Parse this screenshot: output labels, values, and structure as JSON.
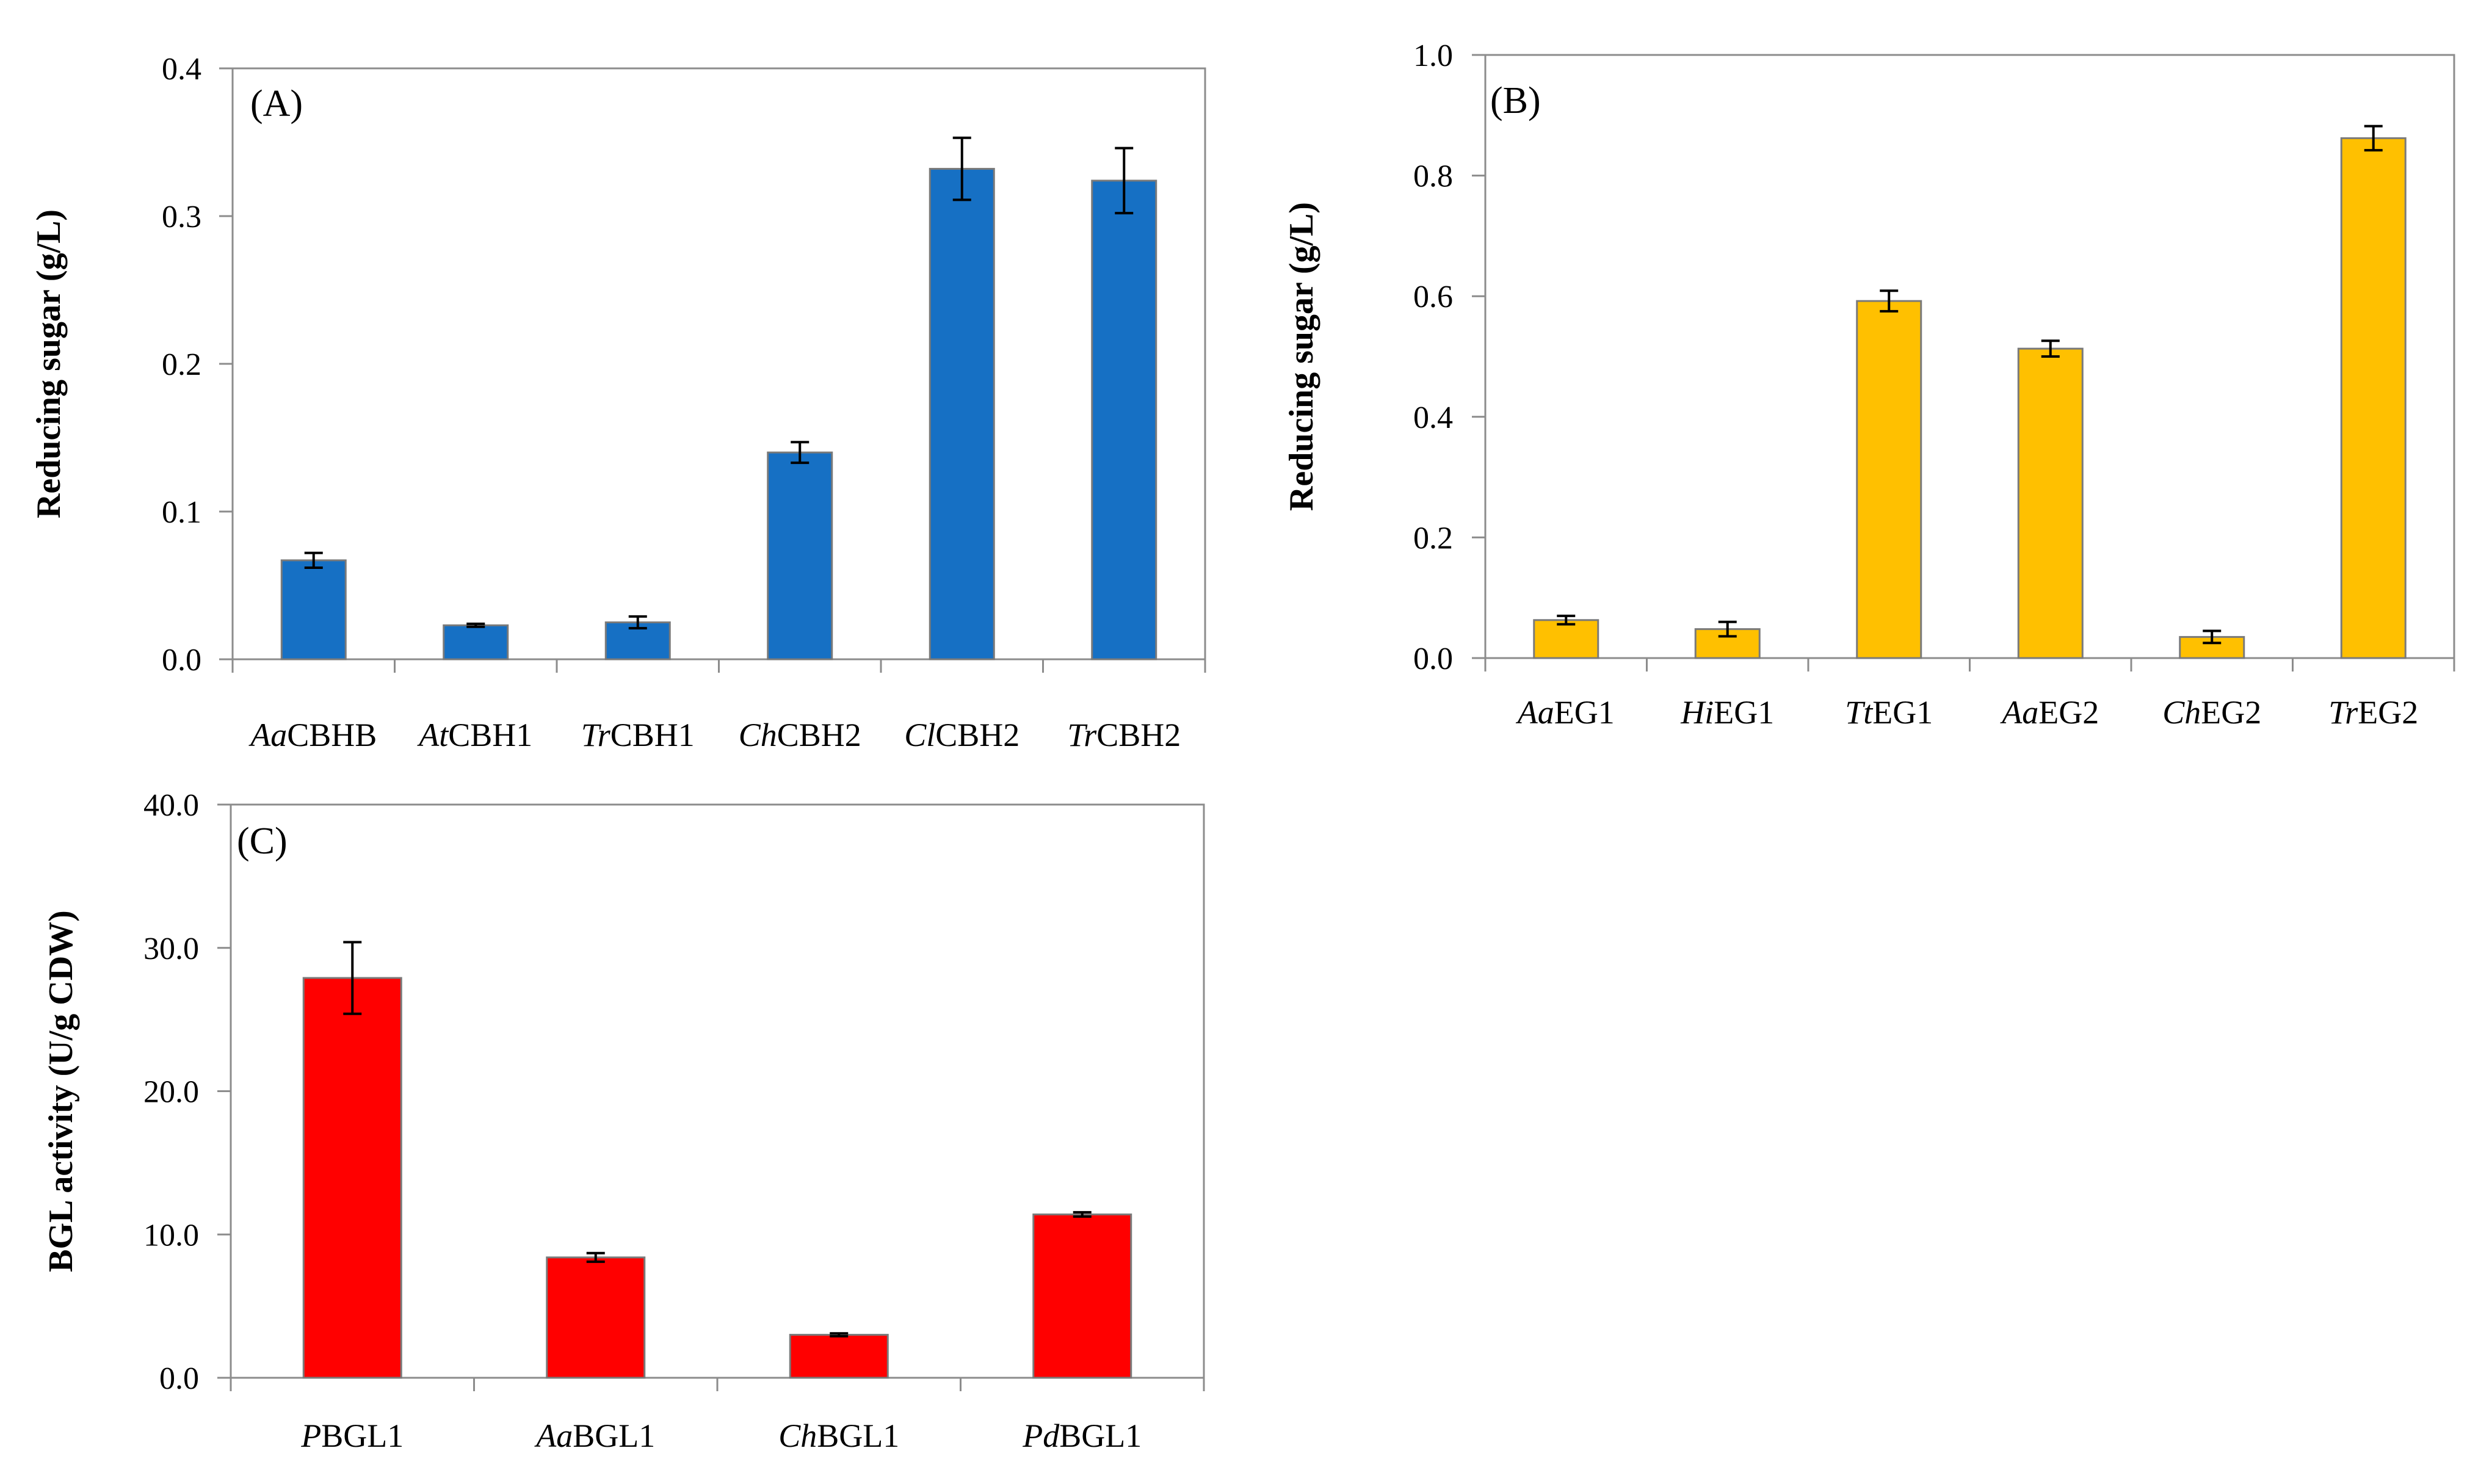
{
  "chart_data": [
    {
      "type": "bar",
      "panel_label": "(A)",
      "title": "",
      "xlabel": "",
      "ylabel": "Reducing sugar (g/L)",
      "ylim": [
        0,
        0.4
      ],
      "yticks": [
        0.0,
        0.1,
        0.2,
        0.3,
        0.4
      ],
      "ytick_labels": [
        "0.0",
        "0.1",
        "0.2",
        "0.3",
        "0.4"
      ],
      "categories": [
        {
          "italic": "Aa",
          "rest": "CBHB"
        },
        {
          "italic": "At",
          "rest": "CBH1"
        },
        {
          "italic": "Tr",
          "rest": "CBH1"
        },
        {
          "italic": "Ch",
          "rest": "CBH2"
        },
        {
          "italic": "Cl",
          "rest": "CBH2"
        },
        {
          "italic": "Tr",
          "rest": "CBH2"
        }
      ],
      "values": [
        0.067,
        0.023,
        0.025,
        0.14,
        0.332,
        0.324
      ],
      "errors": [
        0.005,
        0.001,
        0.004,
        0.007,
        0.021,
        0.022
      ],
      "bar_color": "#1670c4",
      "grid": false
    },
    {
      "type": "bar",
      "panel_label": "(B)",
      "title": "",
      "xlabel": "",
      "ylabel": "Reducing sugar (g/L)",
      "ylim": [
        0,
        1.0
      ],
      "yticks": [
        0.0,
        0.2,
        0.4,
        0.6,
        0.8,
        1.0
      ],
      "ytick_labels": [
        "0.0",
        "0.2",
        "0.4",
        "0.6",
        "0.8",
        "1.0"
      ],
      "categories": [
        {
          "italic": "Aa",
          "rest": "EG1"
        },
        {
          "italic": "Hi",
          "rest": "EG1"
        },
        {
          "italic": "Tt",
          "rest": "EG1"
        },
        {
          "italic": "Aa",
          "rest": "EG2"
        },
        {
          "italic": "Ch",
          "rest": "EG2"
        },
        {
          "italic": "Tr",
          "rest": "EG2"
        }
      ],
      "values": [
        0.063,
        0.048,
        0.592,
        0.513,
        0.035,
        0.862
      ],
      "errors": [
        0.007,
        0.012,
        0.017,
        0.013,
        0.01,
        0.02
      ],
      "bar_color": "#ffc000",
      "grid": false
    },
    {
      "type": "bar",
      "panel_label": "(C)",
      "title": "",
      "xlabel": "",
      "ylabel": "BGL activity (U/g CDW)",
      "ylim": [
        0,
        40
      ],
      "yticks": [
        0,
        10,
        20,
        30,
        40
      ],
      "ytick_labels": [
        "0.0",
        "10.0",
        "20.0",
        "30.0",
        "40.0"
      ],
      "categories": [
        {
          "italic": "P",
          "rest": "BGL1"
        },
        {
          "italic": "Aa",
          "rest": "BGL1"
        },
        {
          "italic": "Ch",
          "rest": "BGL1"
        },
        {
          "italic": "Pd",
          "rest": "BGL1"
        }
      ],
      "values": [
        27.9,
        8.4,
        3.0,
        11.4
      ],
      "errors": [
        2.5,
        0.3,
        0.1,
        0.15
      ],
      "bar_color": "#ff0000",
      "grid": false
    }
  ]
}
